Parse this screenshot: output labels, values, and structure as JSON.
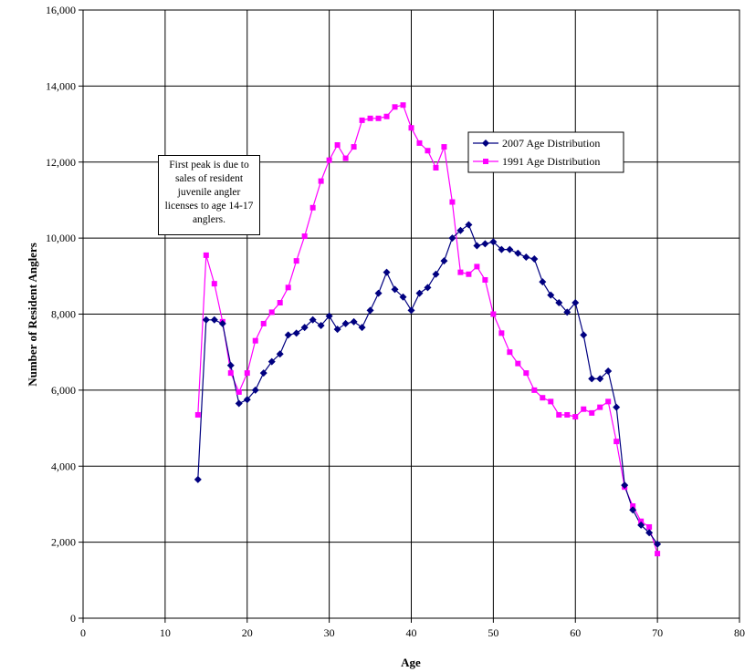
{
  "chart_data": {
    "type": "line",
    "xlabel": "Age",
    "ylabel": "Number of Resident Anglers",
    "xlim": [
      0,
      80
    ],
    "ylim": [
      0,
      16000
    ],
    "x_ticks": [
      "0",
      "10",
      "20",
      "30",
      "40",
      "50",
      "60",
      "70",
      "80"
    ],
    "y_ticks": [
      "0",
      "2,000",
      "4,000",
      "6,000",
      "8,000",
      "10,000",
      "12,000",
      "14,000",
      "16,000"
    ],
    "grid": true,
    "legend_position": "right-middle",
    "annotation": "First peak is due to sales of resident juvenile angler licenses to age 14-17 anglers.",
    "series": [
      {
        "name": "2007 Age Distribution",
        "color": "#000080",
        "marker": "diamond",
        "x": [
          14,
          15,
          16,
          17,
          18,
          19,
          20,
          21,
          22,
          23,
          24,
          25,
          26,
          27,
          28,
          29,
          30,
          31,
          32,
          33,
          34,
          35,
          36,
          37,
          38,
          39,
          40,
          41,
          42,
          43,
          44,
          45,
          46,
          47,
          48,
          49,
          50,
          51,
          52,
          53,
          54,
          55,
          56,
          57,
          58,
          59,
          60,
          61,
          62,
          63,
          64,
          65,
          66,
          67,
          68,
          69,
          70
        ],
        "values": [
          3650,
          7850,
          7850,
          7750,
          6650,
          5650,
          5750,
          6000,
          6450,
          6750,
          6950,
          7450,
          7500,
          7650,
          7850,
          7700,
          7950,
          7600,
          7750,
          7800,
          7650,
          8100,
          8550,
          9100,
          8650,
          8450,
          8100,
          8550,
          8700,
          9050,
          9400,
          10000,
          10200,
          10350,
          9800,
          9850,
          9900,
          9700,
          9700,
          9600,
          9500,
          9450,
          8850,
          8500,
          8300,
          8050,
          8300,
          7450,
          6300,
          6300,
          6500,
          5550,
          3500,
          2850,
          2450,
          2250,
          1950
        ]
      },
      {
        "name": "1991 Age Distribution",
        "color": "#ff00ff",
        "marker": "square",
        "x": [
          14,
          15,
          16,
          17,
          18,
          19,
          20,
          21,
          22,
          23,
          24,
          25,
          26,
          27,
          28,
          29,
          30,
          31,
          32,
          33,
          34,
          35,
          36,
          37,
          38,
          39,
          40,
          41,
          42,
          43,
          44,
          45,
          46,
          47,
          48,
          49,
          50,
          51,
          52,
          53,
          54,
          55,
          56,
          57,
          58,
          59,
          60,
          61,
          62,
          63,
          64,
          65,
          66,
          67,
          68,
          69,
          70
        ],
        "values": [
          5350,
          9550,
          8800,
          7800,
          6450,
          5950,
          6450,
          7300,
          7750,
          8050,
          8300,
          8700,
          9400,
          10050,
          10800,
          11500,
          12050,
          12450,
          12100,
          12400,
          13100,
          13150,
          13150,
          13200,
          13450,
          13500,
          12900,
          12500,
          12300,
          11850,
          12400,
          10950,
          9100,
          9050,
          9250,
          8900,
          8000,
          7500,
          7000,
          6700,
          6450,
          6000,
          5800,
          5700,
          5350,
          5350,
          5300,
          5500,
          5400,
          5550,
          5700,
          4650,
          3450,
          2950,
          2550,
          2400,
          1700
        ]
      }
    ]
  }
}
